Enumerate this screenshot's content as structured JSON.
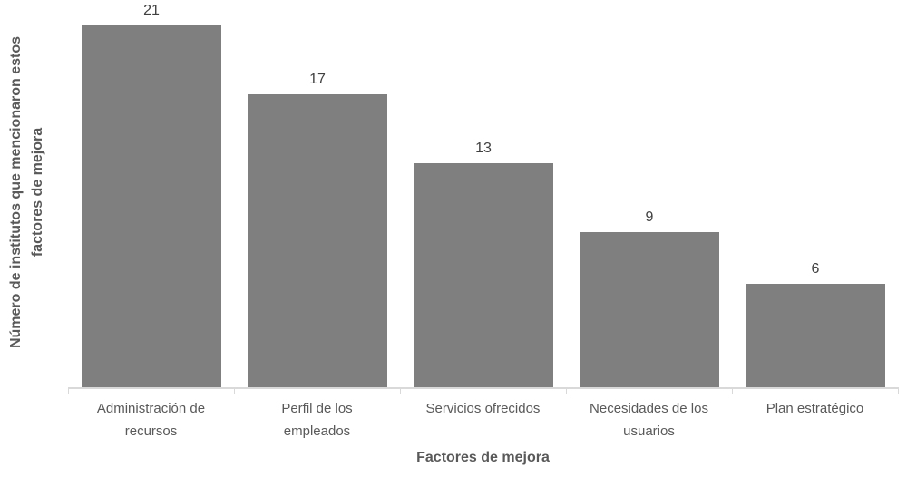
{
  "chart_data": {
    "type": "bar",
    "title": "",
    "categories": [
      "Administración de recursos",
      "Perfil de los empleados",
      "Servicios ofrecidos",
      "Necesidades de los usuarios",
      "Plan estratégico"
    ],
    "category_label_lines": [
      [
        "Administración de",
        "recursos"
      ],
      [
        "Perfil de los",
        "empleados"
      ],
      [
        "Servicios ofrecidos"
      ],
      [
        "Necesidades de los",
        "usuarios"
      ],
      [
        "Plan estratégico"
      ]
    ],
    "values": [
      21,
      17,
      13,
      9,
      6
    ],
    "data_labels_shown": true,
    "xlabel": "Factores de mejora",
    "ylabel": "Número de institutos que mencionaron estos factores de mejora",
    "ylabel_lines": [
      "Número de institutos que mencionaron estos",
      "factores de mejora"
    ],
    "ylim": [
      0,
      22
    ],
    "y_axis_ticks_visible": false,
    "grid": false,
    "legend": false,
    "colors": {
      "bar_fill": "#7f7f7f",
      "value_label_text": "#404040",
      "category_label_text": "#595959",
      "axis_title_text": "#595959",
      "axis_line": "#d9d9d9"
    }
  }
}
